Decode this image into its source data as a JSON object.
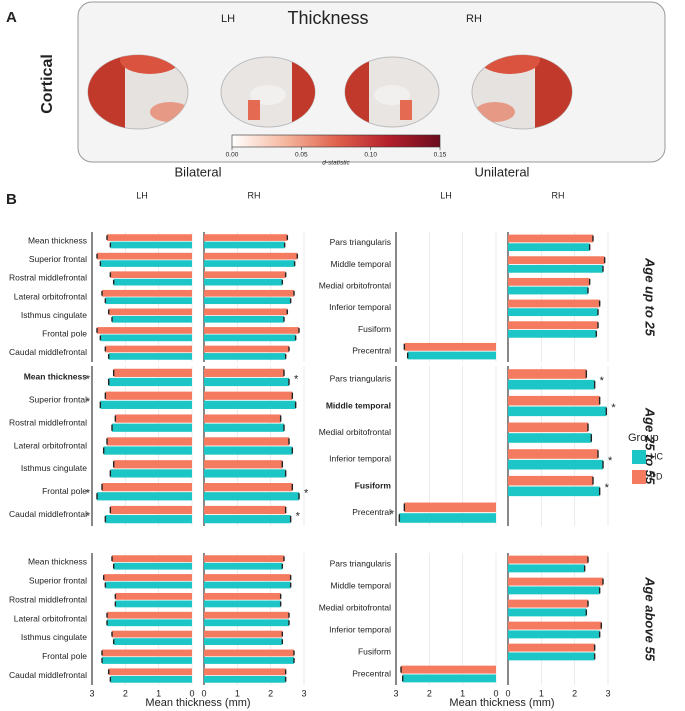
{
  "panel_a": {
    "label": "A",
    "row_label": "Cortical",
    "title": "Thickness",
    "hemispheres": [
      "LH",
      "RH"
    ],
    "colorbar": {
      "label": "d-statistic",
      "lim": [
        0,
        0.15
      ],
      "ticks": [
        {
          "value": 0,
          "label": "0.00"
        },
        {
          "value": 0.05,
          "label": "0.05"
        },
        {
          "value": 0.1,
          "label": "0.10"
        },
        {
          "value": 0.15,
          "label": "0.15"
        }
      ],
      "colors": [
        "#ffffff",
        "#f6b9a1",
        "#e0634e",
        "#b51f2c",
        "#6b0d1e"
      ]
    }
  },
  "chart_data": {
    "type": "bar",
    "orientation": "horizontal",
    "panel_label": "B",
    "x_label": "Mean thickness (mm)",
    "xlim": [
      0,
      3
    ],
    "xticks": [
      0,
      1,
      2,
      3
    ],
    "grid": true,
    "legend": {
      "title": "Group",
      "position": "right"
    },
    "groups": [
      {
        "name": "HC",
        "color": "#1cc6c6"
      },
      {
        "name": "PD",
        "color": "#f47a60"
      }
    ],
    "rows": [
      "Age up to 25",
      "Age 25 to 55",
      "Age above 55"
    ],
    "sections": [
      {
        "title": "Bilateral",
        "columns": [
          {
            "name": "LH",
            "reversed": true
          },
          {
            "name": "RH",
            "reversed": false
          }
        ],
        "rows": [
          {
            "categories": [
              "Mean thickness",
              "Superior frontal",
              "Rostral middlefrontal",
              "Lateral orbitofrontal",
              "Isthmus cingulate",
              "Frontal pole",
              "Caudal middlefrontal"
            ],
            "bold": [
              false,
              false,
              false,
              false,
              false,
              false,
              false
            ],
            "facets": [
              {
                "series": [
                  {
                    "values": [
                      2.45,
                      2.75,
                      2.35,
                      2.6,
                      2.4,
                      2.75,
                      2.5
                    ]
                  },
                  {
                    "values": [
                      2.55,
                      2.85,
                      2.45,
                      2.7,
                      2.5,
                      2.85,
                      2.6
                    ]
                  }
                ]
              },
              {
                "series": [
                  {
                    "values": [
                      2.42,
                      2.72,
                      2.35,
                      2.6,
                      2.4,
                      2.75,
                      2.45
                    ]
                  },
                  {
                    "values": [
                      2.5,
                      2.8,
                      2.45,
                      2.7,
                      2.5,
                      2.85,
                      2.55
                    ]
                  }
                ]
              }
            ]
          },
          {
            "categories": [
              "Mean thickness",
              "Superior frontal",
              "Rostral middlefrontal",
              "Lateral orbitofrontal",
              "Isthmus cingulate",
              "Frontal pole",
              "Caudal middlefrontal"
            ],
            "bold": [
              true,
              false,
              false,
              false,
              false,
              false,
              false
            ],
            "facets": [
              {
                "series": [
                  {
                    "values": [
                      2.5,
                      2.75,
                      2.4,
                      2.65,
                      2.45,
                      2.85,
                      2.6
                    ]
                  },
                  {
                    "values": [
                      2.35,
                      2.6,
                      2.3,
                      2.55,
                      2.35,
                      2.7,
                      2.45
                    ]
                  }
                ],
                "significance": [
                  "*",
                  "*",
                  null,
                  null,
                  null,
                  "*",
                  "*"
                ]
              },
              {
                "series": [
                  {
                    "values": [
                      2.55,
                      2.75,
                      2.4,
                      2.65,
                      2.45,
                      2.85,
                      2.6
                    ]
                  },
                  {
                    "values": [
                      2.4,
                      2.65,
                      2.3,
                      2.55,
                      2.35,
                      2.65,
                      2.45
                    ]
                  }
                ],
                "significance": [
                  "*",
                  null,
                  null,
                  null,
                  null,
                  "*",
                  "*"
                ]
              }
            ]
          },
          {
            "categories": [
              "Mean thickness",
              "Superior frontal",
              "Rostral middlefrontal",
              "Lateral orbitofrontal",
              "Isthmus cingulate",
              "Frontal pole",
              "Caudal middlefrontal"
            ],
            "bold": [
              false,
              false,
              false,
              false,
              false,
              false,
              false
            ],
            "facets": [
              {
                "series": [
                  {
                    "values": [
                      2.35,
                      2.6,
                      2.3,
                      2.55,
                      2.35,
                      2.7,
                      2.45
                    ]
                  },
                  {
                    "values": [
                      2.4,
                      2.65,
                      2.3,
                      2.55,
                      2.4,
                      2.7,
                      2.5
                    ]
                  }
                ]
              },
              {
                "series": [
                  {
                    "values": [
                      2.35,
                      2.6,
                      2.3,
                      2.55,
                      2.35,
                      2.7,
                      2.45
                    ]
                  },
                  {
                    "values": [
                      2.4,
                      2.6,
                      2.3,
                      2.55,
                      2.35,
                      2.7,
                      2.45
                    ]
                  }
                ]
              }
            ]
          }
        ]
      },
      {
        "title": "Unilateral",
        "columns": [
          {
            "name": "LH",
            "reversed": true
          },
          {
            "name": "RH",
            "reversed": false
          }
        ],
        "rows": [
          {
            "categories": [
              "Pars triangularis",
              "Middle temporal",
              "Medial orbitofrontal",
              "Inferior temporal",
              "Fusiform",
              "Precentral"
            ],
            "bold": [
              false,
              false,
              false,
              false,
              false,
              false
            ],
            "facets": [
              {
                "series": [
                  {
                    "values": [
                      null,
                      null,
                      null,
                      null,
                      null,
                      2.65
                    ]
                  },
                  {
                    "values": [
                      null,
                      null,
                      null,
                      null,
                      null,
                      2.75
                    ]
                  }
                ]
              },
              {
                "series": [
                  {
                    "values": [
                      2.45,
                      2.85,
                      2.4,
                      2.7,
                      2.65,
                      null
                    ]
                  },
                  {
                    "values": [
                      2.55,
                      2.9,
                      2.45,
                      2.75,
                      2.7,
                      null
                    ]
                  }
                ]
              }
            ]
          },
          {
            "categories": [
              "Pars triangularis",
              "Middle temporal",
              "Medial orbitofrontal",
              "Inferior temporal",
              "Fusiform",
              "Precentral"
            ],
            "bold": [
              false,
              true,
              false,
              false,
              true,
              false
            ],
            "facets": [
              {
                "series": [
                  {
                    "values": [
                      null,
                      null,
                      null,
                      null,
                      null,
                      2.9
                    ]
                  },
                  {
                    "values": [
                      null,
                      null,
                      null,
                      null,
                      null,
                      2.75
                    ]
                  }
                ],
                "significance": [
                  null,
                  null,
                  null,
                  null,
                  null,
                  "*"
                ]
              },
              {
                "series": [
                  {
                    "values": [
                      2.6,
                      2.95,
                      2.5,
                      2.85,
                      2.75,
                      null
                    ]
                  },
                  {
                    "values": [
                      2.35,
                      2.75,
                      2.4,
                      2.7,
                      2.55,
                      null
                    ]
                  }
                ],
                "significance": [
                  "*",
                  "*",
                  null,
                  "*",
                  "*",
                  null
                ]
              }
            ]
          },
          {
            "categories": [
              "Pars triangularis",
              "Middle temporal",
              "Medial orbitofrontal",
              "Inferior temporal",
              "Fusiform",
              "Precentral"
            ],
            "bold": [
              false,
              false,
              false,
              false,
              false,
              false
            ],
            "facets": [
              {
                "series": [
                  {
                    "values": [
                      null,
                      null,
                      null,
                      null,
                      null,
                      2.8
                    ]
                  },
                  {
                    "values": [
                      null,
                      null,
                      null,
                      null,
                      null,
                      2.85
                    ]
                  }
                ]
              },
              {
                "series": [
                  {
                    "values": [
                      2.3,
                      2.75,
                      2.35,
                      2.75,
                      2.6,
                      null
                    ]
                  },
                  {
                    "values": [
                      2.4,
                      2.85,
                      2.4,
                      2.8,
                      2.6,
                      null
                    ]
                  }
                ]
              }
            ]
          }
        ]
      }
    ]
  }
}
